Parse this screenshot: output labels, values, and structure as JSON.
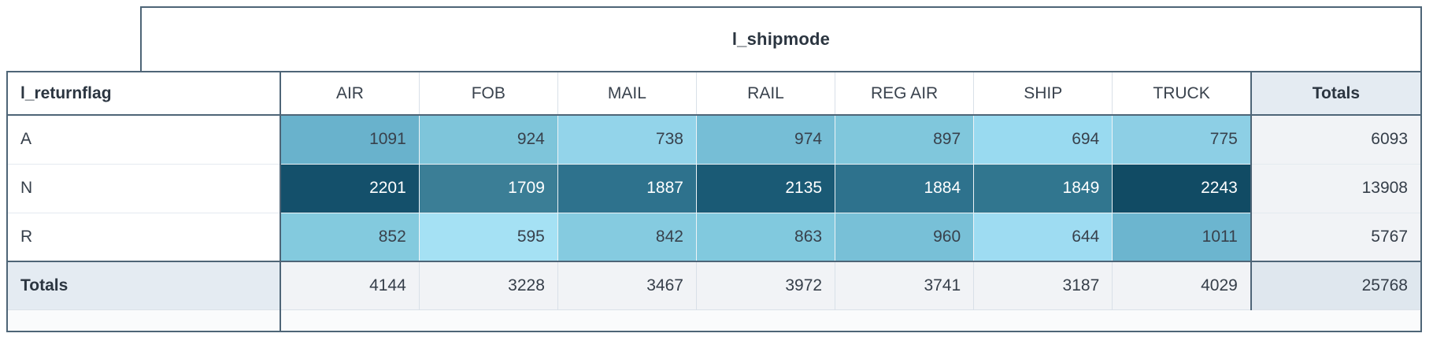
{
  "chart_data": {
    "type": "heatmap",
    "column_field": "l_shipmode",
    "row_field": "l_returnflag",
    "columns": [
      "AIR",
      "FOB",
      "MAIL",
      "RAIL",
      "REG AIR",
      "SHIP",
      "TRUCK"
    ],
    "rows": [
      "A",
      "N",
      "R"
    ],
    "values": [
      [
        1091,
        924,
        738,
        974,
        897,
        694,
        775
      ],
      [
        2201,
        1709,
        1887,
        2135,
        1884,
        1849,
        2243
      ],
      [
        852,
        595,
        842,
        863,
        960,
        644,
        1011
      ]
    ],
    "row_totals": [
      6093,
      13908,
      5767
    ],
    "column_totals": [
      4144,
      3228,
      3467,
      3972,
      3741,
      3187,
      4029
    ],
    "grand_total": 25768,
    "totals_label": "Totals",
    "color_scale": {
      "min_value": 595,
      "max_value": 2243,
      "min_color": "#a5e1f4",
      "max_color": "#114b64"
    },
    "cell_colors": [
      [
        "#69b2cc",
        "#7ec5da",
        "#93d4ea",
        "#76bed6",
        "#80c7dc",
        "#99daf0",
        "#8dcfe5"
      ],
      [
        "#14506b",
        "#3b7e96",
        "#2e728d",
        "#1a5a75",
        "#2e728d",
        "#31768f",
        "#114b64"
      ],
      [
        "#83cade",
        "#a5e1f4",
        "#85cbe0",
        "#81c9de",
        "#78c0d7",
        "#9edcf2",
        "#6cb5cf"
      ]
    ],
    "cell_text_colors": [
      "#38414c",
      "#ffffff",
      "#38414c"
    ]
  },
  "theme": {
    "frame_border": "#4e6577",
    "totals_header_bg": "#e4ebf2",
    "totals_cell_bg": "#f1f3f6",
    "grand_total_bg": "#dfe7ee"
  }
}
